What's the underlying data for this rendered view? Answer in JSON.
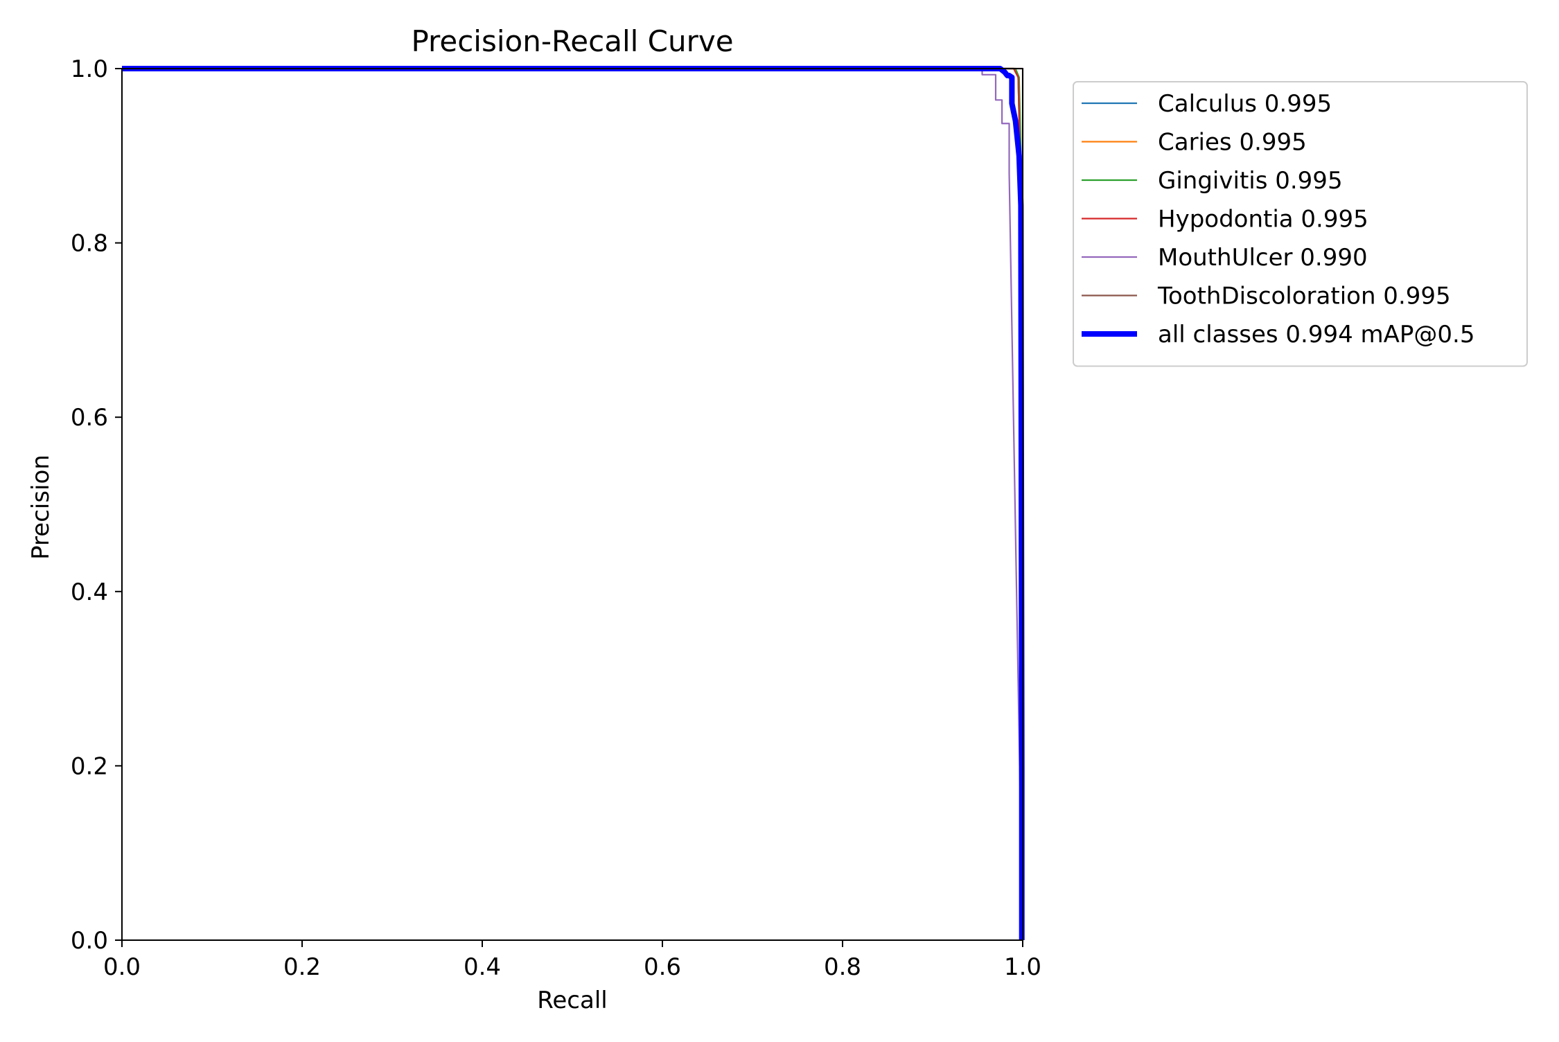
{
  "chart_data": {
    "type": "line",
    "title": "Precision-Recall Curve",
    "xlabel": "Recall",
    "ylabel": "Precision",
    "xlim": [
      0,
      1
    ],
    "ylim": [
      0,
      1
    ],
    "xticks": [
      "0.0",
      "0.2",
      "0.4",
      "0.6",
      "0.8",
      "1.0"
    ],
    "yticks": [
      "0.0",
      "0.2",
      "0.4",
      "0.6",
      "0.8",
      "1.0"
    ],
    "grid": false,
    "legend_position": "outside-right-top",
    "series": [
      {
        "name": "Calculus 0.995",
        "color": "#1f77b4",
        "line_width": "thin",
        "points": [
          [
            0,
            1
          ],
          [
            0.99,
            1
          ],
          [
            0.995,
            0.99
          ],
          [
            0.998,
            0.85
          ],
          [
            1.0,
            0.0
          ]
        ]
      },
      {
        "name": "Caries 0.995",
        "color": "#ff7f0e",
        "line_width": "thin",
        "points": [
          [
            0,
            1
          ],
          [
            0.99,
            1
          ],
          [
            0.995,
            0.99
          ],
          [
            0.998,
            0.87
          ],
          [
            1.0,
            0.0
          ]
        ]
      },
      {
        "name": "Gingivitis 0.995",
        "color": "#2ca02c",
        "line_width": "thin",
        "points": [
          [
            0,
            1
          ],
          [
            0.992,
            1
          ],
          [
            0.996,
            0.99
          ],
          [
            0.999,
            0.86
          ],
          [
            1.0,
            0.0
          ]
        ]
      },
      {
        "name": "Hypodontia 0.995",
        "color": "#d62728",
        "line_width": "thin",
        "points": [
          [
            0,
            1
          ],
          [
            0.99,
            1
          ],
          [
            0.995,
            0.99
          ],
          [
            0.998,
            0.85
          ],
          [
            1.0,
            0.0
          ]
        ]
      },
      {
        "name": "MouthUlcer 0.990",
        "color": "#9467bd",
        "line_width": "thin",
        "points": [
          [
            0,
            1
          ],
          [
            0.955,
            1
          ],
          [
            0.955,
            0.993
          ],
          [
            0.97,
            0.993
          ],
          [
            0.97,
            0.964
          ],
          [
            0.977,
            0.964
          ],
          [
            0.977,
            0.937
          ],
          [
            0.985,
            0.937
          ],
          [
            0.985,
            0.88
          ],
          [
            1.0,
            0.0
          ]
        ]
      },
      {
        "name": "ToothDiscoloration 0.995",
        "color": "#8c564b",
        "line_width": "thin",
        "points": [
          [
            0,
            1
          ],
          [
            0.995,
            1
          ],
          [
            1.0,
            1.0
          ],
          [
            1.0,
            0.0
          ]
        ]
      },
      {
        "name": "all classes 0.994 mAP@0.5",
        "color": "#0000ff",
        "line_width": "thick",
        "points": [
          [
            0,
            1
          ],
          [
            0.975,
            1
          ],
          [
            0.98,
            0.996
          ],
          [
            0.983,
            0.992
          ],
          [
            0.985,
            0.992
          ],
          [
            0.988,
            0.99
          ],
          [
            0.988,
            0.96
          ],
          [
            0.992,
            0.94
          ],
          [
            0.996,
            0.9
          ],
          [
            0.998,
            0.843
          ],
          [
            0.999,
            0.2
          ],
          [
            0.999,
            0.0
          ]
        ]
      }
    ]
  }
}
